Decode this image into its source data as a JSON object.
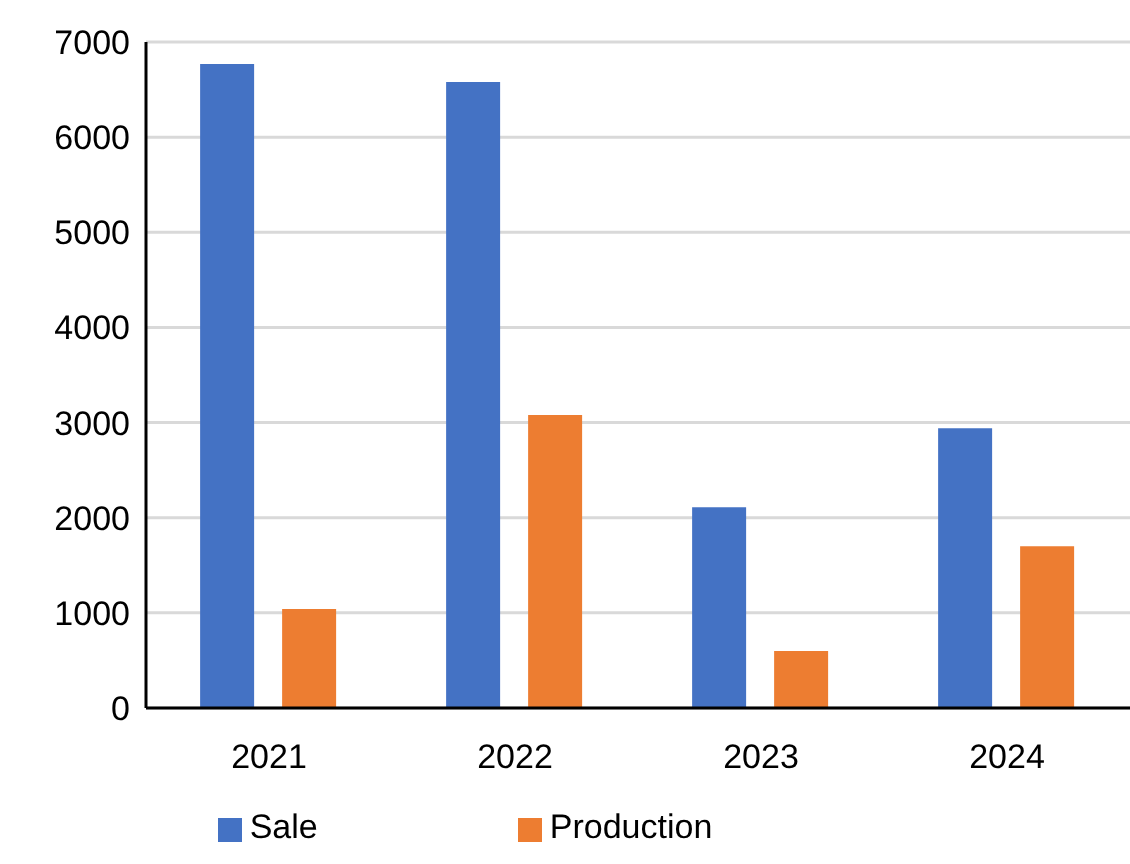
{
  "chart_data": {
    "type": "bar",
    "categories": [
      "2021",
      "2022",
      "2023",
      "2024"
    ],
    "series": [
      {
        "name": "Sale",
        "color": "#4472c4",
        "values": [
          6770,
          6580,
          2110,
          2940
        ]
      },
      {
        "name": "Production",
        "color": "#ed7d31",
        "values": [
          1040,
          3080,
          600,
          1700
        ]
      }
    ],
    "ylim": [
      0,
      7000
    ],
    "yticks": [
      0,
      1000,
      2000,
      3000,
      4000,
      5000,
      6000,
      7000
    ],
    "grid": "y",
    "legend": "bottom"
  }
}
